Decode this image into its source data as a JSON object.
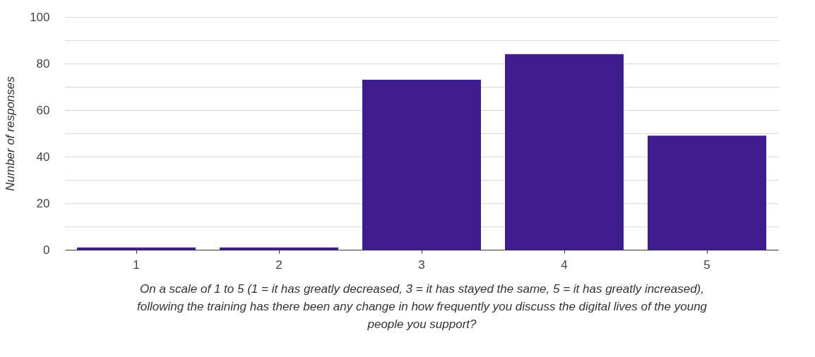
{
  "chart_data": {
    "type": "bar",
    "xlabel": "On a scale of 1 to 5 (1 = it has greatly decreased, 3 = it has stayed the same, 5 = it has greatly increased), following the training has there been any change in how frequently you discuss the digital lives of the young people you support?",
    "ylabel": "Number of responses",
    "categories": [
      "1",
      "2",
      "3",
      "4",
      "5"
    ],
    "values": [
      1,
      1,
      73,
      84,
      49
    ],
    "color": "#3f1d8c",
    "ylim": [
      0,
      100
    ],
    "yticks": [
      0,
      {
        "value": 10,
        "label": null
      },
      20,
      {
        "value": 30,
        "label": null
      },
      40,
      {
        "value": 50,
        "label": null
      },
      60,
      {
        "value": 70,
        "label": null
      },
      80,
      {
        "value": 90,
        "label": null
      },
      100
    ],
    "grid": "y"
  }
}
